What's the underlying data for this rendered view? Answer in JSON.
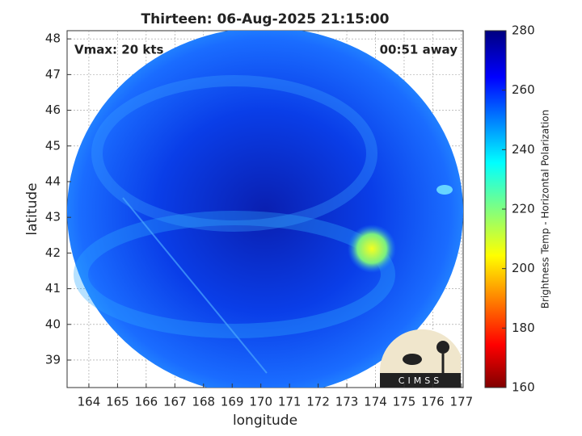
{
  "chart_data": {
    "type": "image",
    "title": "Thirteen: 06-Aug-2025 21:15:00",
    "annotations": [
      "Vmax: 20 kts",
      "00:51 away"
    ],
    "xlabel": "longitude",
    "ylabel": "latitude",
    "xlim": [
      163.24,
      177.06
    ],
    "xticks": [
      164,
      165,
      166,
      167,
      168,
      169,
      170,
      171,
      172,
      173,
      174,
      175,
      176,
      177
    ],
    "ylim": [
      38.23,
      48.23
    ],
    "yticks": [
      39,
      40,
      41,
      42,
      43,
      44,
      45,
      46,
      47,
      48
    ],
    "grid": true,
    "colorbar": {
      "label": "Brightness Temp - Horizontal Polarization",
      "lim": [
        160,
        280
      ],
      "ticks": [
        160,
        180,
        200,
        220,
        240,
        260,
        280
      ]
    },
    "logo": "CIMSS"
  }
}
